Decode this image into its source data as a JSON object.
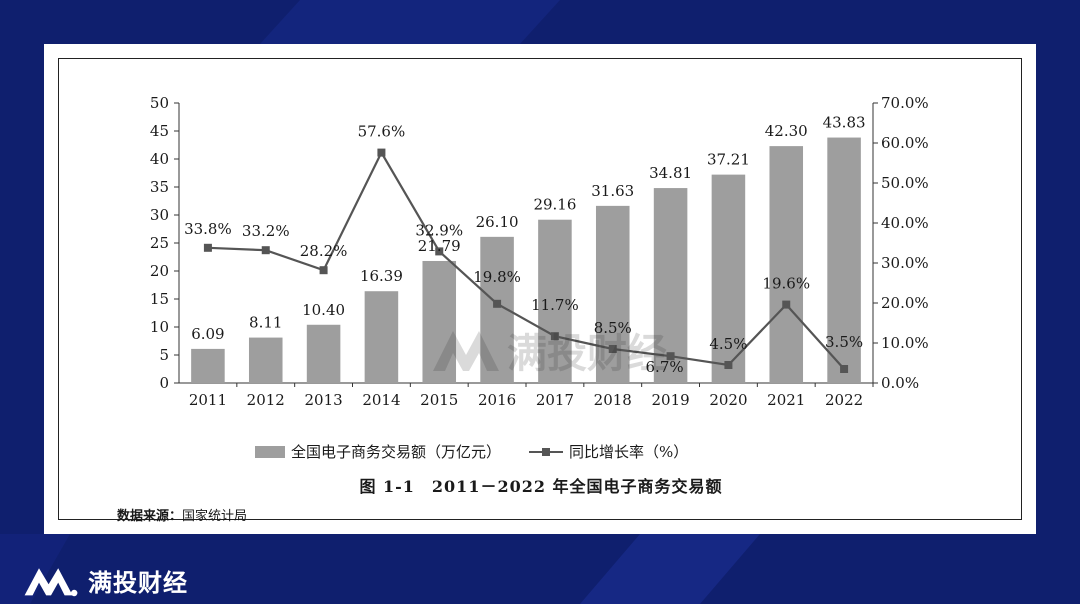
{
  "chart_data": {
    "type": "bar",
    "caption": "图 1-1　2011－2022 年全国电子商务交易额",
    "categories": [
      "2011",
      "2012",
      "2013",
      "2014",
      "2015",
      "2016",
      "2017",
      "2018",
      "2019",
      "2020",
      "2021",
      "2022"
    ],
    "series": [
      {
        "name": "全国电子商务交易额（万亿元）",
        "type": "bar",
        "axis": "left",
        "color": "#9e9e9e",
        "values": [
          6.09,
          8.11,
          10.4,
          16.39,
          21.79,
          26.1,
          29.16,
          31.63,
          34.81,
          37.21,
          42.3,
          43.83
        ],
        "labels": [
          "6.09",
          "8.11",
          "10.40",
          "16.39",
          "21.79",
          "26.10",
          "29.16",
          "31.63",
          "34.81",
          "37.21",
          "42.30",
          "43.83"
        ]
      },
      {
        "name": "同比增长率（%）",
        "type": "line",
        "axis": "right",
        "color": "#555555",
        "values": [
          33.8,
          33.2,
          28.2,
          57.6,
          32.9,
          19.8,
          11.7,
          8.5,
          6.7,
          4.5,
          19.6,
          3.5
        ],
        "labels": [
          "33.8%",
          "33.2%",
          "28.2%",
          "57.6%",
          "32.9%",
          "19.8%",
          "11.7%",
          "8.5%",
          "6.7%",
          "4.5%",
          "19.6%",
          "3.5%"
        ]
      }
    ],
    "y_left": {
      "min": 0,
      "max": 50,
      "ticks": [
        "0",
        "5",
        "10",
        "15",
        "20",
        "25",
        "30",
        "35",
        "40",
        "45",
        "50"
      ]
    },
    "y_right": {
      "min": 0,
      "max": 70,
      "ticks": [
        "0.0%",
        "10.0%",
        "20.0%",
        "30.0%",
        "40.0%",
        "50.0%",
        "60.0%",
        "70.0%"
      ]
    },
    "legend_position": "bottom",
    "grid": false
  },
  "legend": {
    "bar_label": "全国电子商务交易额（万亿元）",
    "line_label": "同比增长率（%）"
  },
  "source": {
    "label": "数据来源：",
    "text": "国家统计局"
  },
  "watermark": {
    "text": "满投财经"
  },
  "brand": {
    "name": "满投财经"
  },
  "colors": {
    "background": "#0f1f6e",
    "bar": "#9e9e9e",
    "line": "#555555",
    "text": "#1a1a1a"
  }
}
